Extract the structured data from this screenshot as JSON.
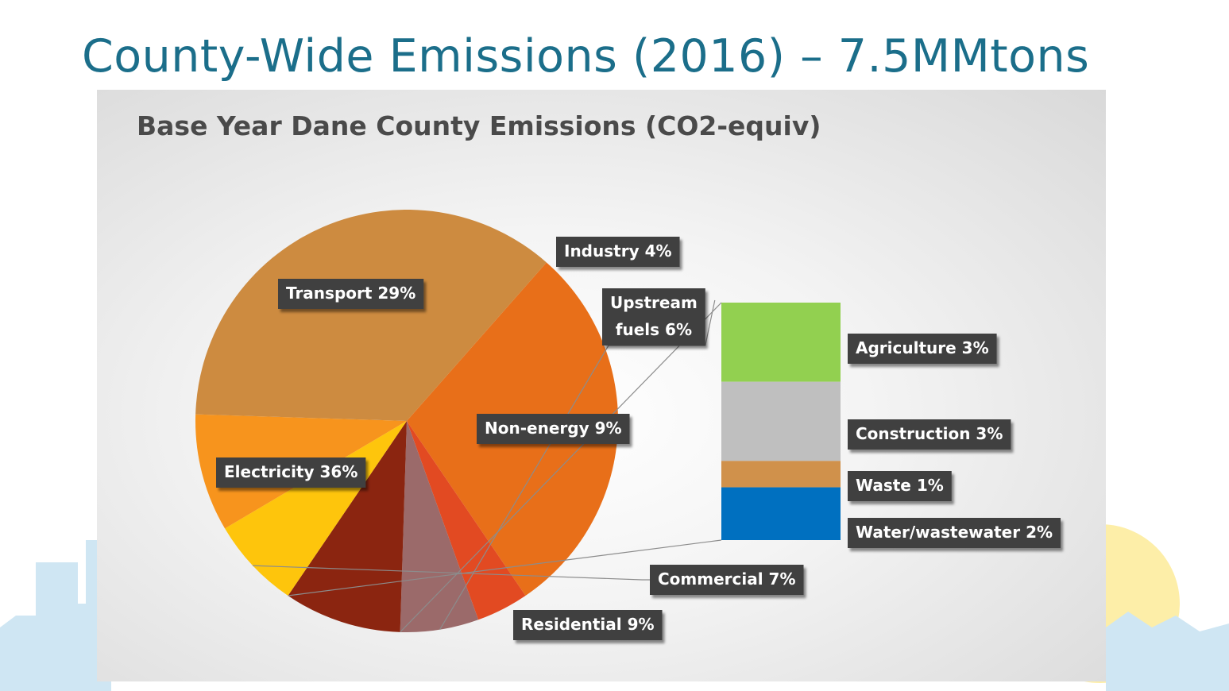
{
  "slide": {
    "title": "County-Wide Emissions (2016) – 7.5MMtons"
  },
  "chart_data": {
    "type": "pie",
    "title": "Base Year Dane County Emissions (CO2-equiv)",
    "slices": [
      {
        "label": "Transport 29%",
        "value": 29,
        "color": "#e86f19"
      },
      {
        "label": "Industry 4%",
        "value": 4,
        "color": "#e24a22"
      },
      {
        "label": "Upstream fuels 6%",
        "value": 6,
        "color": "#9b6a6a"
      },
      {
        "label": "Non-energy 9%",
        "value": 9,
        "color": "#8b2510"
      },
      {
        "label": "Commercial 7%",
        "value": 7,
        "color": "#fec50c"
      },
      {
        "label": "Residential 9%",
        "value": 9,
        "color": "#f7941d"
      },
      {
        "label": "Electricity 36%",
        "value": 36,
        "color": "#cd8b40"
      }
    ],
    "breakdown": {
      "of": "Non-energy 9%",
      "segments": [
        {
          "label": "Agriculture 3%",
          "value": 3,
          "color": "#92d050"
        },
        {
          "label": "Construction 3%",
          "value": 3,
          "color": "#bfbfbf"
        },
        {
          "label": "Waste 1%",
          "value": 1,
          "color": "#d0914b"
        },
        {
          "label": "Water/wastewater 2%",
          "value": 2,
          "color": "#0070c0"
        }
      ]
    },
    "legend": "none"
  }
}
